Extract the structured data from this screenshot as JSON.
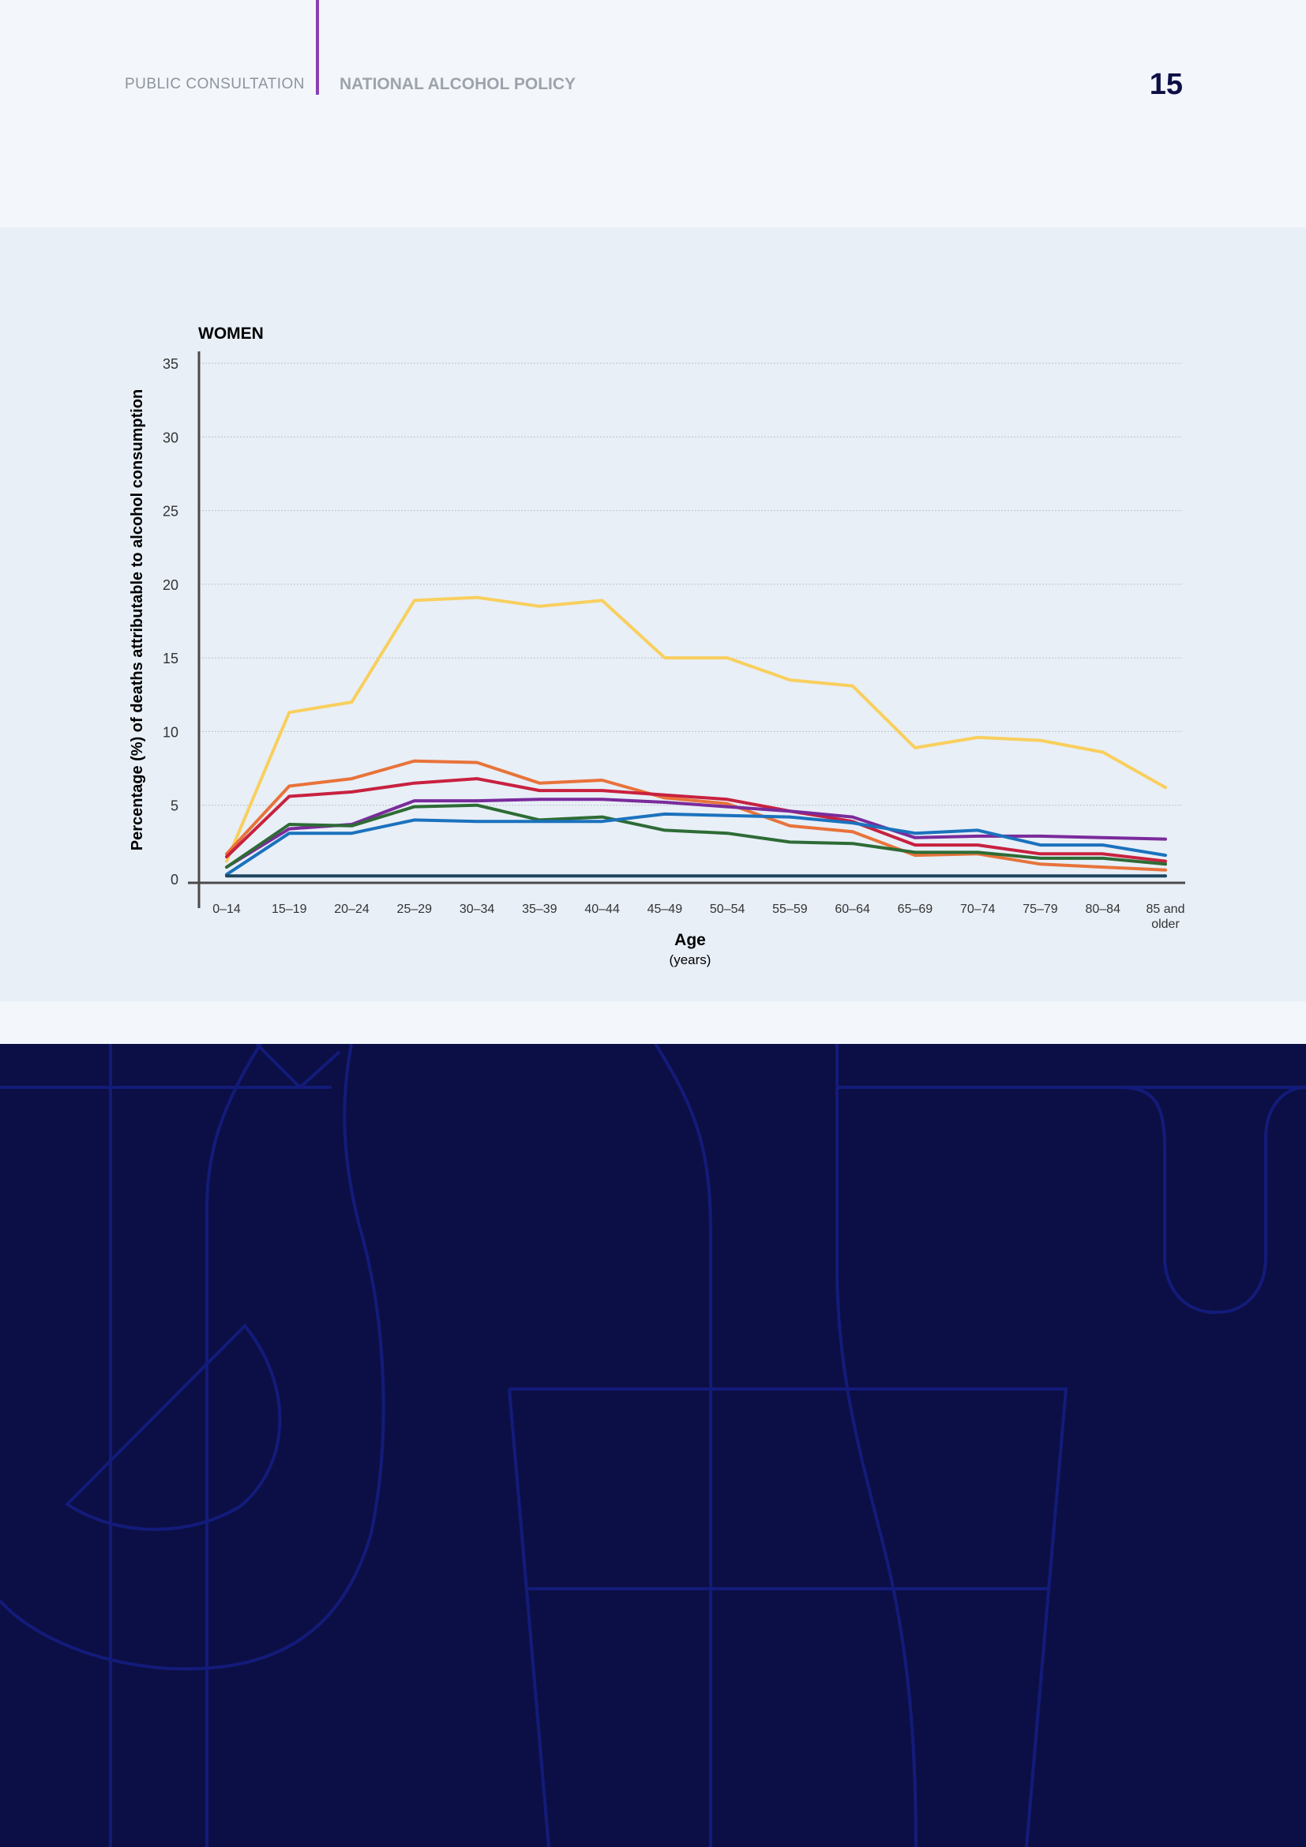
{
  "header": {
    "left_label": "PUBLIC CONSULTATION",
    "title": "NATIONAL ALCOHOL POLICY",
    "page_number": "15"
  },
  "colors": {
    "background": "#f3f7fc",
    "chart_panel": "#e8eff7",
    "dark_band": "#0c0f45",
    "accent_divider": "#8c3fb0"
  },
  "chart_data": {
    "type": "line",
    "title": "WOMEN",
    "xlabel": "Age",
    "xlabel_sub": "(years)",
    "ylabel": "Percentage (%) of deaths attributable to alcohol consumption",
    "ylim": [
      0,
      35
    ],
    "yticks": [
      0,
      5,
      10,
      15,
      20,
      25,
      30,
      35
    ],
    "grid": true,
    "categories": [
      "0–14",
      "15–19",
      "20–24",
      "25–29",
      "30–34",
      "35–39",
      "40–44",
      "45–49",
      "50–54",
      "55–59",
      "60–64",
      "65–69",
      "70–74",
      "75–79",
      "80–84",
      "85 and older"
    ],
    "series": [
      {
        "color": "#f9cf5d",
        "values": [
          1.2,
          11.3,
          12.0,
          18.9,
          19.1,
          18.5,
          18.9,
          15.0,
          15.0,
          13.5,
          13.1,
          8.9,
          9.6,
          9.4,
          8.6,
          6.2
        ]
      },
      {
        "color": "#e8733a",
        "values": [
          1.7,
          6.3,
          6.8,
          8.0,
          7.9,
          6.5,
          6.7,
          5.5,
          5.1,
          3.6,
          3.2,
          1.6,
          1.7,
          1.0,
          0.8,
          0.6
        ]
      },
      {
        "color": "#c8213f",
        "values": [
          1.5,
          5.6,
          5.9,
          6.5,
          6.8,
          6.0,
          6.0,
          5.7,
          5.4,
          4.6,
          3.9,
          2.3,
          2.3,
          1.7,
          1.7,
          1.2
        ]
      },
      {
        "color": "#7a2b9b",
        "values": [
          0.8,
          3.4,
          3.7,
          5.3,
          5.3,
          5.4,
          5.4,
          5.2,
          4.9,
          4.6,
          4.2,
          2.8,
          2.9,
          2.9,
          2.8,
          2.7
        ]
      },
      {
        "color": "#2e6b35",
        "values": [
          0.8,
          3.7,
          3.6,
          4.9,
          5.0,
          4.0,
          4.2,
          3.3,
          3.1,
          2.5,
          2.4,
          1.8,
          1.8,
          1.4,
          1.4,
          1.0
        ]
      },
      {
        "color": "#1b72bd",
        "values": [
          0.3,
          3.1,
          3.1,
          4.0,
          3.9,
          3.9,
          3.9,
          4.4,
          4.3,
          4.2,
          3.8,
          3.1,
          3.3,
          2.3,
          2.3,
          1.6
        ]
      },
      {
        "color": "#1f4660",
        "values": [
          0.2,
          0.2,
          0.2,
          0.2,
          0.2,
          0.2,
          0.2,
          0.2,
          0.2,
          0.2,
          0.2,
          0.2,
          0.2,
          0.2,
          0.2,
          0.2
        ]
      }
    ]
  }
}
